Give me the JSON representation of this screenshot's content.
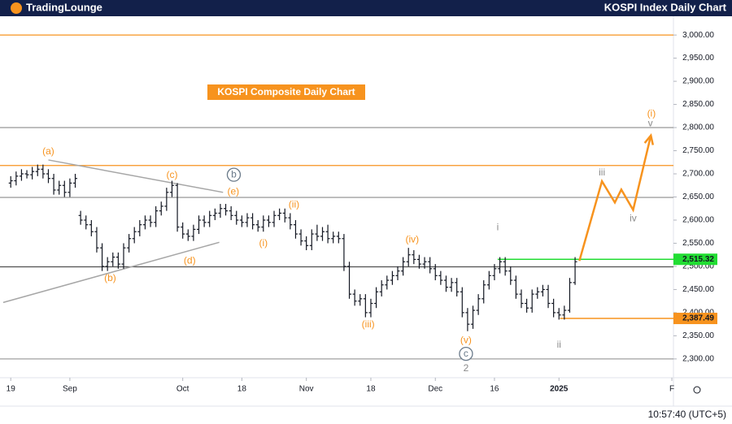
{
  "brand": "TradingLounge",
  "timestamp": "10:57:40 (UTC+5)",
  "chart_data": {
    "type": "ohlc",
    "title": "KOSPI Index Daily Chart",
    "chart_label": "KOSPI Composite Daily Chart",
    "bar_color": "#131722",
    "xlim": [
      -2,
      123.3
    ],
    "ylim": [
      2259.4,
      3040.6
    ],
    "xticks": [
      {
        "value": 0,
        "label": "19"
      },
      {
        "value": 11,
        "label": "Sep"
      },
      {
        "value": 32,
        "label": "Oct"
      },
      {
        "value": 43,
        "label": "18"
      },
      {
        "value": 55,
        "label": "Nov"
      },
      {
        "value": 67,
        "label": "18"
      },
      {
        "value": 79,
        "label": "Dec"
      },
      {
        "value": 90,
        "label": "16"
      },
      {
        "value": 102,
        "label": "2025"
      },
      {
        "value": 123,
        "label": "F"
      }
    ],
    "yticks": [
      {
        "value": 2300,
        "label": "2,300.00"
      },
      {
        "value": 2350,
        "label": "2,350.00"
      },
      {
        "value": 2400,
        "label": "2,400.00"
      },
      {
        "value": 2450,
        "label": "2,450.00"
      },
      {
        "value": 2500,
        "label": "2,500.00"
      },
      {
        "value": 2550,
        "label": "2,550.00"
      },
      {
        "value": 2600,
        "label": "2,600.00"
      },
      {
        "value": 2650,
        "label": "2,650.00"
      },
      {
        "value": 2700,
        "label": "2,700.00"
      },
      {
        "value": 2750,
        "label": "2,750.00"
      },
      {
        "value": 2800,
        "label": "2,800.00"
      },
      {
        "value": 2850,
        "label": "2,850.00"
      },
      {
        "value": 2900,
        "label": "2,900.00"
      },
      {
        "value": 2950,
        "label": "2,950.00"
      },
      {
        "value": 3000,
        "label": "3,000.00"
      }
    ],
    "ohlc": [
      [
        2680,
        2695,
        2670,
        2685
      ],
      [
        2685,
        2705,
        2675,
        2695
      ],
      [
        2695,
        2710,
        2685,
        2700
      ],
      [
        2700,
        2708,
        2690,
        2698
      ],
      [
        2698,
        2715,
        2688,
        2705
      ],
      [
        2705,
        2720,
        2695,
        2710
      ],
      [
        2710,
        2720,
        2690,
        2700
      ],
      [
        2700,
        2710,
        2680,
        2690
      ],
      [
        2690,
        2700,
        2655,
        2665
      ],
      [
        2665,
        2685,
        2655,
        2675
      ],
      [
        2675,
        2685,
        2650,
        2660
      ],
      [
        2660,
        2690,
        2650,
        2680
      ],
      [
        2680,
        2700,
        2670,
        2690
      ],
      [
        2610,
        2620,
        2590,
        2600
      ],
      [
        2600,
        2610,
        2580,
        2590
      ],
      [
        2590,
        2600,
        2565,
        2575
      ],
      [
        2575,
        2585,
        2530,
        2540
      ],
      [
        2540,
        2550,
        2490,
        2500
      ],
      [
        2500,
        2520,
        2490,
        2510
      ],
      [
        2510,
        2530,
        2500,
        2520
      ],
      [
        2520,
        2530,
        2495,
        2505
      ],
      [
        2505,
        2550,
        2495,
        2540
      ],
      [
        2540,
        2570,
        2530,
        2560
      ],
      [
        2560,
        2585,
        2550,
        2575
      ],
      [
        2575,
        2600,
        2565,
        2590
      ],
      [
        2590,
        2610,
        2580,
        2600
      ],
      [
        2600,
        2610,
        2585,
        2595
      ],
      [
        2595,
        2630,
        2585,
        2620
      ],
      [
        2620,
        2640,
        2610,
        2630
      ],
      [
        2630,
        2670,
        2620,
        2660
      ],
      [
        2660,
        2685,
        2650,
        2675
      ],
      [
        2675,
        2680,
        2575,
        2585
      ],
      [
        2585,
        2595,
        2560,
        2570
      ],
      [
        2570,
        2580,
        2555,
        2565
      ],
      [
        2565,
        2590,
        2555,
        2580
      ],
      [
        2580,
        2610,
        2570,
        2600
      ],
      [
        2600,
        2610,
        2585,
        2595
      ],
      [
        2595,
        2620,
        2585,
        2610
      ],
      [
        2610,
        2625,
        2600,
        2615
      ],
      [
        2615,
        2635,
        2605,
        2625
      ],
      [
        2625,
        2635,
        2610,
        2620
      ],
      [
        2620,
        2630,
        2600,
        2610
      ],
      [
        2610,
        2620,
        2590,
        2600
      ],
      [
        2600,
        2610,
        2585,
        2595
      ],
      [
        2595,
        2615,
        2585,
        2605
      ],
      [
        2605,
        2615,
        2580,
        2590
      ],
      [
        2590,
        2600,
        2575,
        2585
      ],
      [
        2585,
        2610,
        2575,
        2600
      ],
      [
        2600,
        2610,
        2585,
        2595
      ],
      [
        2595,
        2620,
        2585,
        2610
      ],
      [
        2610,
        2625,
        2600,
        2615
      ],
      [
        2615,
        2625,
        2595,
        2605
      ],
      [
        2605,
        2615,
        2580,
        2590
      ],
      [
        2590,
        2600,
        2560,
        2570
      ],
      [
        2570,
        2580,
        2545,
        2555
      ],
      [
        2555,
        2565,
        2535,
        2545
      ],
      [
        2545,
        2580,
        2535,
        2570
      ],
      [
        2570,
        2590,
        2555,
        2565
      ],
      [
        2565,
        2585,
        2555,
        2575
      ],
      [
        2575,
        2590,
        2550,
        2560
      ],
      [
        2560,
        2575,
        2550,
        2565
      ],
      [
        2565,
        2575,
        2550,
        2560
      ],
      [
        2560,
        2570,
        2490,
        2500
      ],
      [
        2500,
        2510,
        2430,
        2440
      ],
      [
        2440,
        2450,
        2415,
        2425
      ],
      [
        2425,
        2440,
        2415,
        2430
      ],
      [
        2430,
        2440,
        2390,
        2400
      ],
      [
        2400,
        2430,
        2390,
        2420
      ],
      [
        2420,
        2455,
        2410,
        2445
      ],
      [
        2445,
        2470,
        2435,
        2460
      ],
      [
        2460,
        2480,
        2450,
        2470
      ],
      [
        2470,
        2490,
        2460,
        2480
      ],
      [
        2480,
        2500,
        2470,
        2490
      ],
      [
        2490,
        2520,
        2480,
        2510
      ],
      [
        2510,
        2540,
        2500,
        2525
      ],
      [
        2525,
        2535,
        2505,
        2515
      ],
      [
        2515,
        2525,
        2495,
        2505
      ],
      [
        2505,
        2520,
        2495,
        2510
      ],
      [
        2510,
        2520,
        2485,
        2495
      ],
      [
        2495,
        2505,
        2470,
        2480
      ],
      [
        2480,
        2490,
        2460,
        2470
      ],
      [
        2470,
        2480,
        2445,
        2455
      ],
      [
        2455,
        2475,
        2445,
        2465
      ],
      [
        2465,
        2475,
        2435,
        2445
      ],
      [
        2445,
        2455,
        2390,
        2400
      ],
      [
        2400,
        2410,
        2360,
        2375
      ],
      [
        2375,
        2415,
        2365,
        2405
      ],
      [
        2405,
        2440,
        2395,
        2430
      ],
      [
        2430,
        2470,
        2420,
        2460
      ],
      [
        2460,
        2490,
        2450,
        2480
      ],
      [
        2480,
        2505,
        2470,
        2495
      ],
      [
        2495,
        2520,
        2485,
        2510
      ],
      [
        2510,
        2520,
        2480,
        2490
      ],
      [
        2490,
        2500,
        2460,
        2470
      ],
      [
        2470,
        2480,
        2430,
        2440
      ],
      [
        2440,
        2450,
        2410,
        2420
      ],
      [
        2420,
        2430,
        2400,
        2410
      ],
      [
        2410,
        2450,
        2400,
        2440
      ],
      [
        2440,
        2455,
        2430,
        2445
      ],
      [
        2445,
        2460,
        2435,
        2450
      ],
      [
        2450,
        2460,
        2410,
        2420
      ],
      [
        2420,
        2430,
        2390,
        2400
      ],
      [
        2400,
        2410,
        2385,
        2395
      ],
      [
        2395,
        2415,
        2385,
        2405
      ],
      [
        2405,
        2475,
        2400,
        2465
      ],
      [
        2465,
        2520,
        2460,
        2510
      ]
    ],
    "levels": [
      {
        "value": 3000,
        "color": "#f7931e"
      },
      {
        "value": 2800,
        "color": "#a0a0a0"
      },
      {
        "value": 2718,
        "color": "#f7931e"
      },
      {
        "value": 2649,
        "color": "#a0a0a0"
      },
      {
        "value": 2499,
        "color": "#505050"
      },
      {
        "value": 2300,
        "color": "#a0a0a0"
      }
    ],
    "price_tags": [
      {
        "value": 2515.32,
        "label": "2,515.32",
        "color": "#22dd33",
        "from": 90.6
      },
      {
        "value": 2387.49,
        "label": "2,387.49",
        "color": "#f7931e",
        "from": 102.2
      }
    ],
    "trendlines": [
      {
        "x": [
          7,
          39.5
        ],
        "y": [
          2730,
          2660
        ]
      },
      {
        "x": [
          -1.4,
          38.8
        ],
        "y": [
          2422,
          2552
        ]
      }
    ],
    "projection": {
      "color": "#f7931e",
      "x": [
        105.8,
        110,
        112.4,
        113.6,
        115.8,
        119.1
      ],
      "y": [
        2512,
        2684,
        2638,
        2666,
        2622,
        2783
      ]
    },
    "annotations": [
      {
        "label": "(a)",
        "x": 7,
        "y": 2748,
        "color": "#f7931e"
      },
      {
        "label": "(b)",
        "x": 18.5,
        "y": 2474,
        "color": "#f7931e"
      },
      {
        "label": "(c)",
        "x": 30,
        "y": 2697,
        "color": "#f7931e"
      },
      {
        "label": "b",
        "x": 41.5,
        "y": 2698,
        "color": "#6a7a8a",
        "circled": true
      },
      {
        "label": "(e)",
        "x": 41.4,
        "y": 2661,
        "color": "#f7931e"
      },
      {
        "label": "(d)",
        "x": 33.3,
        "y": 2512,
        "color": "#f7931e"
      },
      {
        "label": "(i)",
        "x": 47,
        "y": 2549,
        "color": "#f7931e"
      },
      {
        "label": "(ii)",
        "x": 52.7,
        "y": 2633,
        "color": "#f7931e"
      },
      {
        "label": "(iii)",
        "x": 66.5,
        "y": 2374,
        "color": "#f7931e"
      },
      {
        "label": "(iv)",
        "x": 74.7,
        "y": 2557,
        "color": "#f7931e"
      },
      {
        "label": "(v)",
        "x": 84.7,
        "y": 2340,
        "color": "#f7931e"
      },
      {
        "label": "c",
        "x": 84.7,
        "y": 2311,
        "color": "#6a7a8a",
        "circled": true
      },
      {
        "label": "2",
        "x": 84.7,
        "y": 2279,
        "color": "#8a8a8a"
      },
      {
        "label": "i",
        "x": 90.6,
        "y": 2584,
        "color": "#8a8a8a"
      },
      {
        "label": "ii",
        "x": 102,
        "y": 2330,
        "color": "#8a8a8a"
      },
      {
        "label": "iii",
        "x": 110,
        "y": 2702,
        "color": "#8a8a8a"
      },
      {
        "label": "iv",
        "x": 115.8,
        "y": 2603,
        "color": "#8a8a8a"
      },
      {
        "label": "v",
        "x": 119,
        "y": 2808,
        "color": "#8a8a8a"
      },
      {
        "label": "(i)",
        "x": 119.2,
        "y": 2829,
        "color": "#f7931e"
      }
    ]
  }
}
